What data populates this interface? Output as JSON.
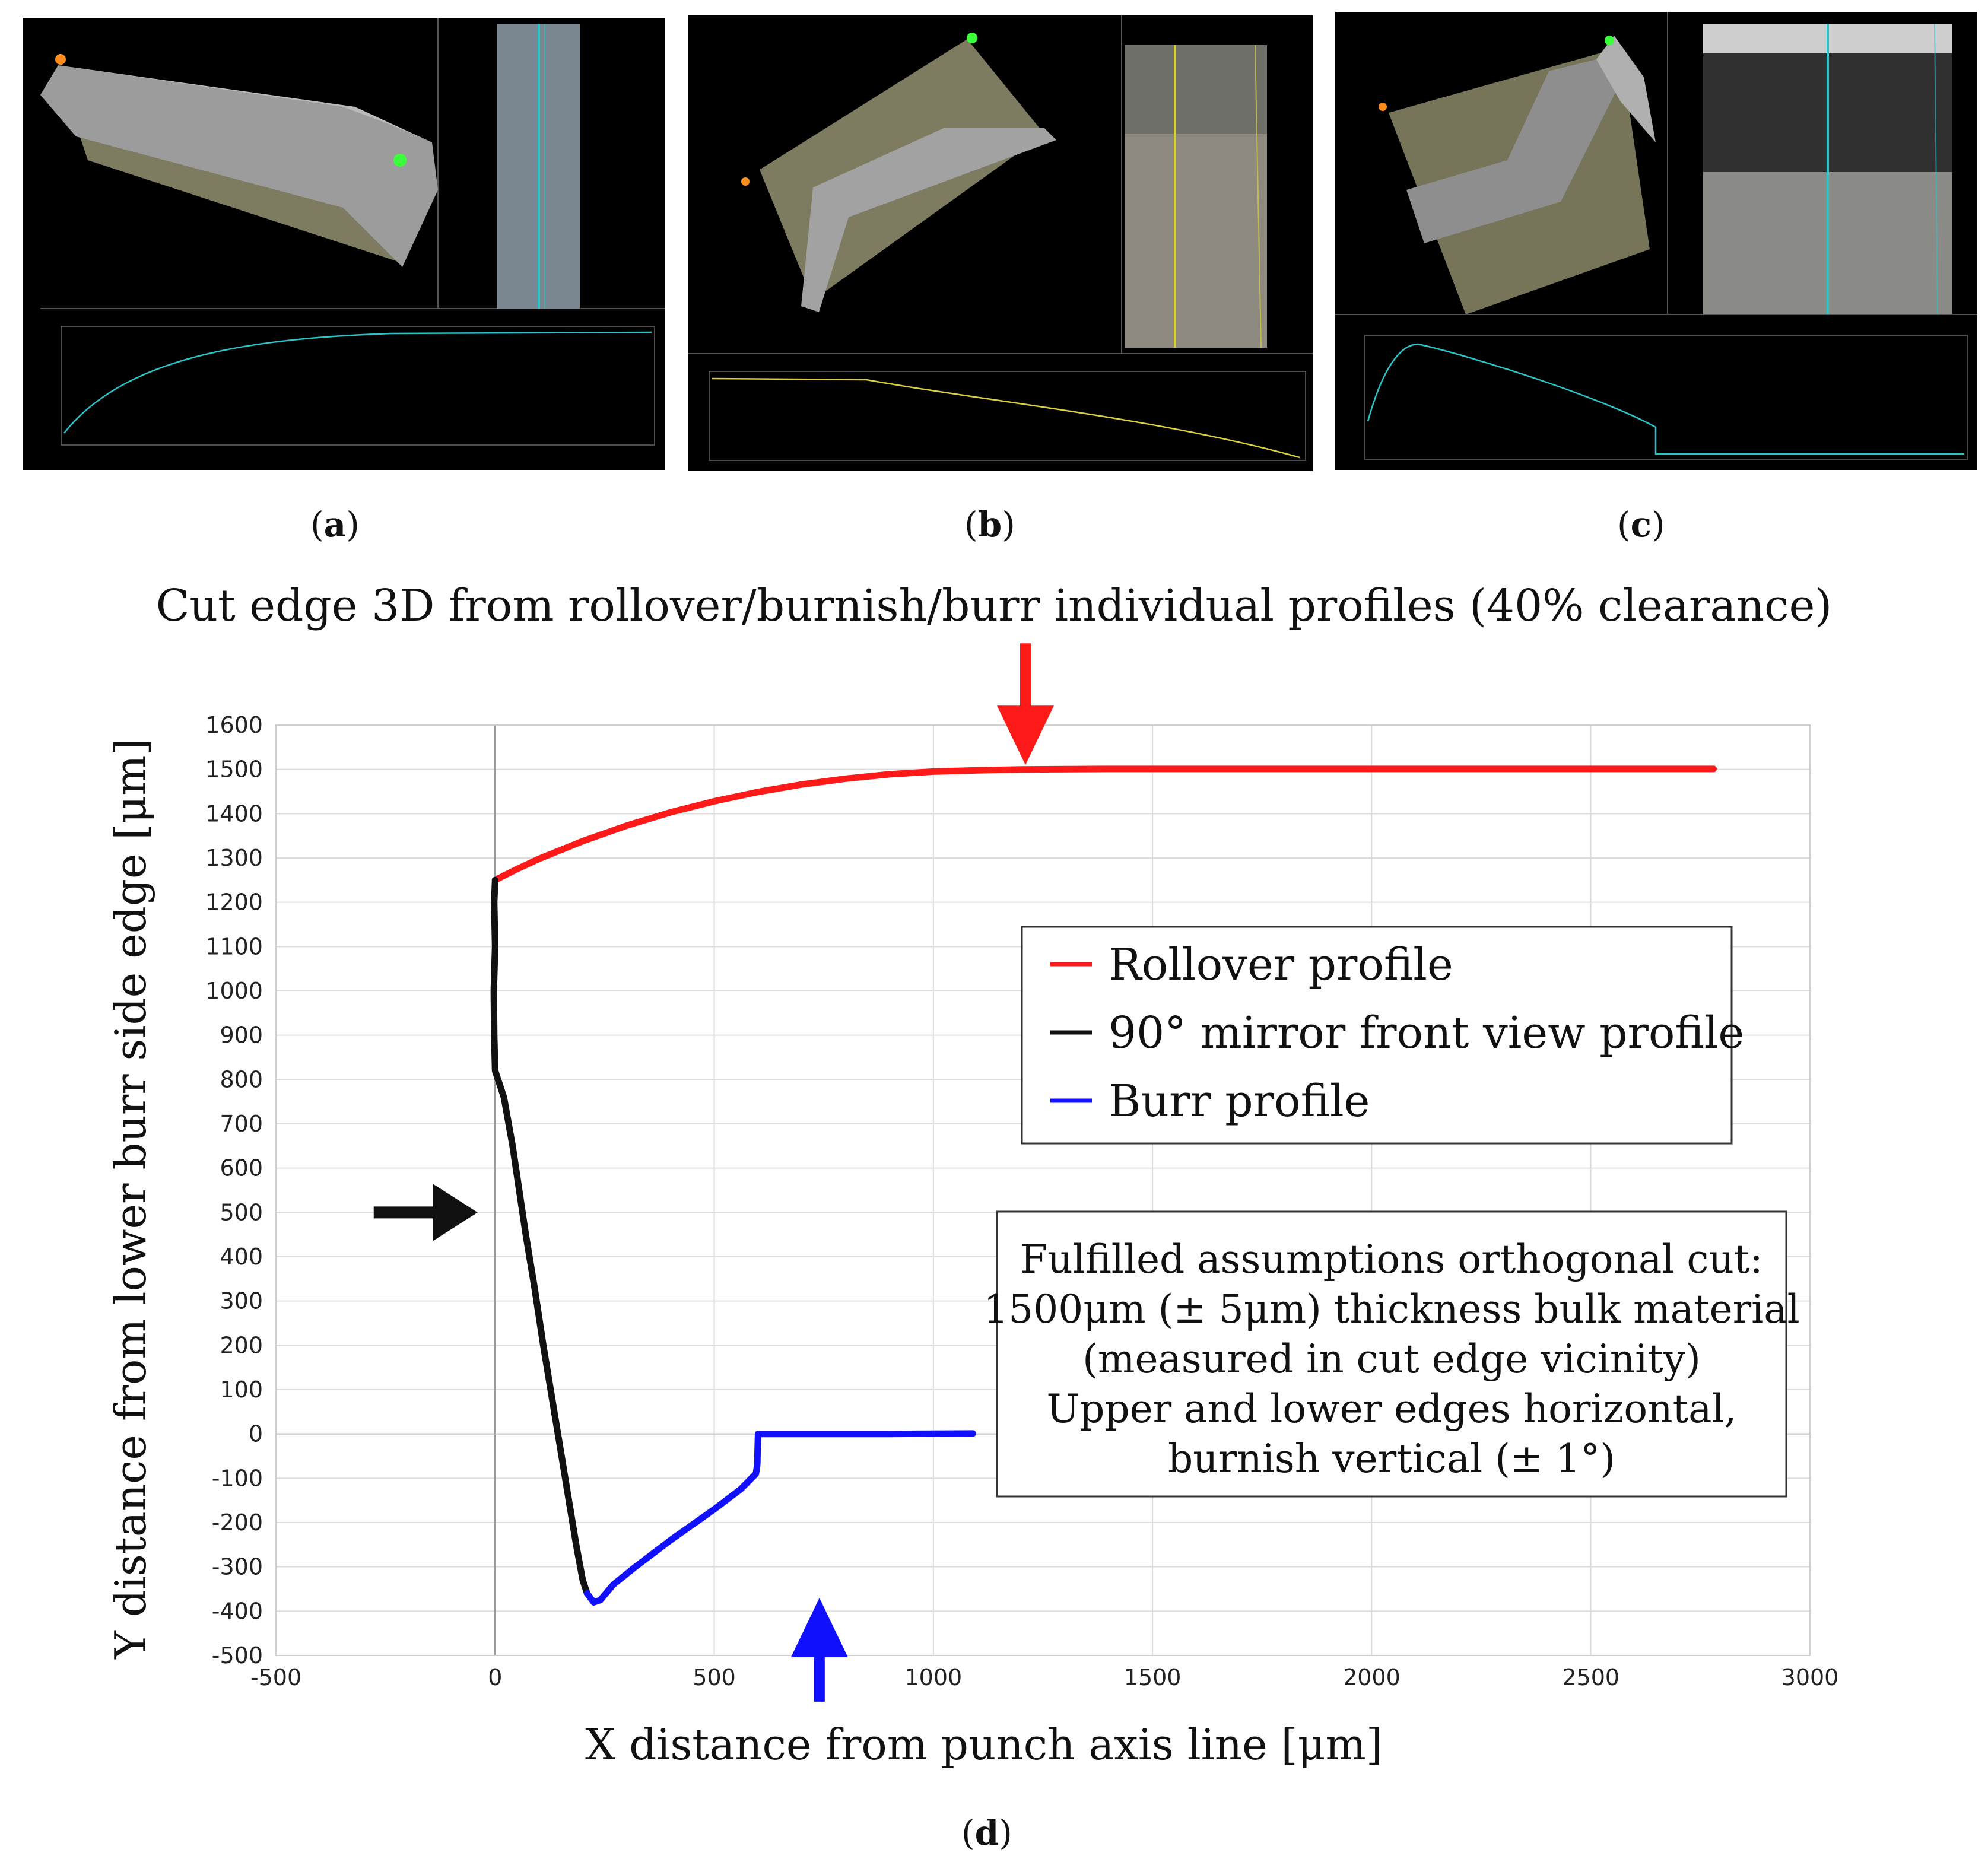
{
  "figure": {
    "sublabels": [
      "a",
      "b",
      "c",
      "d"
    ],
    "title": "Cut edge 3D from rollover/burnish/burr individual profiles (40% clearance)"
  },
  "colors": {
    "rollover": "#ff1a1a",
    "mirror": "#111111",
    "burr": "#1010ff",
    "grid": "#dcdcdc",
    "screen_bg": "#000000",
    "material": "#8b8a6a",
    "marker_orange": "#ff8c1a",
    "marker_green": "#3cff3c",
    "trace_cyan": "#2bc4c8",
    "trace_yellow": "#d8d040"
  },
  "icons": [
    "arrow-down-icon",
    "arrow-right-icon",
    "arrow-up-icon"
  ],
  "chart_data": {
    "type": "line",
    "title": "",
    "xlabel": "X distance from punch axis line [μm]",
    "ylabel": "Y distance from lower burr side edge [μm]",
    "xlim": [
      -500,
      3000
    ],
    "ylim": [
      -500,
      1600
    ],
    "xticks": [
      -500,
      0,
      500,
      1000,
      1500,
      2000,
      2500,
      3000
    ],
    "yticks": [
      -500,
      -400,
      -300,
      -200,
      -100,
      0,
      100,
      200,
      300,
      400,
      500,
      600,
      700,
      800,
      900,
      1000,
      1100,
      1200,
      1300,
      1400,
      1500,
      1600
    ],
    "grid": true,
    "legend_position": "upper-right",
    "series": [
      {
        "name": "Rollover profile",
        "color": "#ff1a1a",
        "points": [
          [
            0,
            1250
          ],
          [
            50,
            1275
          ],
          [
            100,
            1298
          ],
          [
            200,
            1338
          ],
          [
            300,
            1373
          ],
          [
            400,
            1403
          ],
          [
            500,
            1428
          ],
          [
            600,
            1449
          ],
          [
            700,
            1466
          ],
          [
            800,
            1479
          ],
          [
            900,
            1489
          ],
          [
            1000,
            1495
          ],
          [
            1100,
            1498
          ],
          [
            1200,
            1500
          ],
          [
            1400,
            1501
          ],
          [
            1700,
            1501
          ],
          [
            2000,
            1501
          ],
          [
            2400,
            1501
          ],
          [
            2780,
            1501
          ]
        ]
      },
      {
        "name": "90° mirror front view profile",
        "color": "#111111",
        "points": [
          [
            0,
            1250
          ],
          [
            -2,
            1200
          ],
          [
            0,
            1100
          ],
          [
            -3,
            1000
          ],
          [
            -2,
            900
          ],
          [
            0,
            820
          ],
          [
            20,
            760
          ],
          [
            40,
            650
          ],
          [
            55,
            550
          ],
          [
            70,
            450
          ],
          [
            90,
            330
          ],
          [
            110,
            200
          ],
          [
            130,
            80
          ],
          [
            150,
            -40
          ],
          [
            170,
            -160
          ],
          [
            185,
            -250
          ],
          [
            200,
            -330
          ],
          [
            210,
            -360
          ]
        ]
      },
      {
        "name": "Burr profile",
        "color": "#1010ff",
        "points": [
          [
            210,
            -360
          ],
          [
            225,
            -380
          ],
          [
            240,
            -375
          ],
          [
            270,
            -340
          ],
          [
            320,
            -300
          ],
          [
            400,
            -240
          ],
          [
            500,
            -170
          ],
          [
            560,
            -125
          ],
          [
            595,
            -90
          ],
          [
            598,
            -70
          ],
          [
            600,
            0
          ],
          [
            700,
            0
          ],
          [
            900,
            0
          ],
          [
            1090,
            1
          ]
        ]
      }
    ],
    "legend": [
      "Rollover profile",
      "90° mirror front view profile",
      "Burr profile"
    ],
    "annotation_lines": [
      "Fulfilled assumptions orthogonal cut:",
      "1500μm (± 5μm) thickness bulk material",
      "(measured in cut edge vicinity)",
      "Upper and lower edges horizontal,",
      "burnish vertical (± 1°)"
    ],
    "arrows": [
      {
        "icon": "arrow-down-icon",
        "color": "#ff1a1a",
        "x": 1210,
        "y": 1510
      },
      {
        "icon": "arrow-right-icon",
        "color": "#111111",
        "x": -40,
        "y": 500
      },
      {
        "icon": "arrow-up-icon",
        "color": "#1010ff",
        "x": 740,
        "y": -370
      }
    ]
  }
}
